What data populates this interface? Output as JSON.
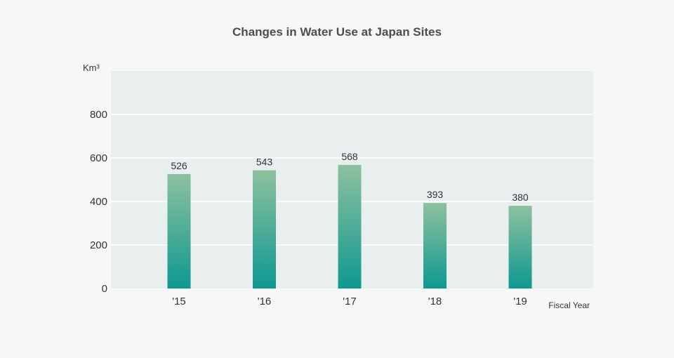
{
  "chart_data": {
    "type": "bar",
    "title": "Changes in Water Use at Japan Sites",
    "ylabel": "Km³",
    "xlabel": "Fiscal Year",
    "categories": [
      "'15",
      "'16",
      "'17",
      "'18",
      "'19"
    ],
    "values": [
      526,
      543,
      568,
      393,
      380
    ],
    "yticks": [
      0,
      200,
      400,
      600,
      800
    ],
    "ylim": [
      0,
      1000
    ],
    "grid": true,
    "legend": "none",
    "colors": {
      "background": "#f7f7f7",
      "plot_area": "#e8efee",
      "gridline": "#ffffff",
      "bar_top": "#8dc19f",
      "bar_bottom": "#0f9890"
    }
  }
}
